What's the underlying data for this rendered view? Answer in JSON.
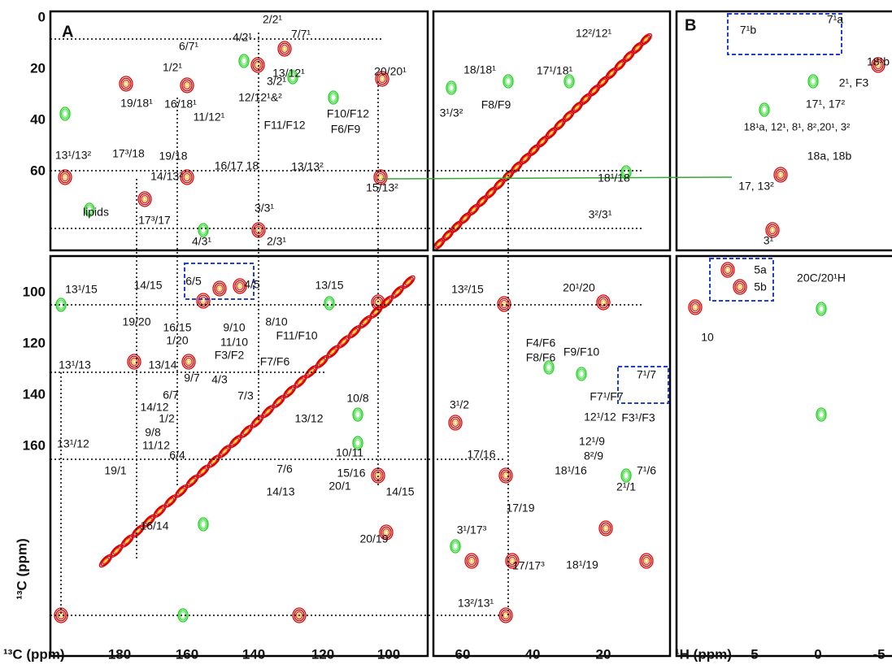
{
  "panels": {
    "a_label": "A",
    "b_label": "B"
  },
  "y_axis": {
    "title": "¹³C (ppm)",
    "ticks": [
      "0",
      "20",
      "40",
      "60",
      "100",
      "120",
      "140",
      "160"
    ]
  },
  "x_axis": {
    "title_c": "¹³C (ppm)",
    "ticks_a": [
      "180",
      "160",
      "140",
      "120",
      "100"
    ],
    "ticks_mid": [
      "60",
      "40",
      "20"
    ],
    "title_h": "¹H (ppm)",
    "ticks_b": [
      "5",
      "0",
      "-5"
    ]
  },
  "annotations": [
    "6/7¹",
    "4/2¹",
    "2/2¹",
    "7/7¹",
    "1/2¹",
    "13/12¹",
    "20/20¹",
    "19/18¹",
    "16/18¹",
    "3/2¹",
    "12/12¹&²",
    "11/12¹",
    "F11/F12",
    "F10/F12",
    "F6/F9",
    "13¹/13²",
    "17³/18",
    "19/18",
    "16/17 18",
    "13/13²",
    "14/13²",
    "15/13²",
    "lipids",
    "17³/17",
    "3/3¹",
    "4/3¹",
    "2/3¹",
    "12²/12¹",
    "18/18¹",
    "17¹/18¹",
    "F8/F9",
    "3¹/3²",
    "18¹/18",
    "3²/3¹",
    "7¹b",
    "7¹a",
    "18¹b",
    "2¹, F3",
    "17¹, 17²",
    "18¹a, 12¹, 8¹, 8²,20¹, 3²",
    "18a, 18b",
    "17, 13²",
    "3¹",
    "13¹/15",
    "14/15",
    "6/5",
    "4/5",
    "13/15",
    "19/20",
    "16/15",
    "1/20",
    "9/10",
    "8/10",
    "11/10",
    "F11/F10",
    "F3/F2",
    "13¹/13",
    "13/14",
    "F7/F6",
    "9/7",
    "4/3",
    "6/7",
    "7/3",
    "10/8",
    "14/12",
    "1/2",
    "13/12",
    "9/8",
    "11/12",
    "13¹/12",
    "6/4",
    "10/11",
    "7/6",
    "19/1",
    "15/16",
    "20/1",
    "14/13",
    "14/15",
    "16/14",
    "20/19",
    "13²/15",
    "20¹/20",
    "F4/F6",
    "F8/F6",
    "F9/F10",
    "7¹/7",
    "F7¹/F7",
    "3¹/2",
    "12¹/12",
    "F3¹/F3",
    "12¹/9",
    "8²/9",
    "17/16",
    "7¹/6",
    "18¹/16",
    "2¹/1",
    "17/19",
    "3¹/17³",
    "17/17³",
    "18¹/19",
    "13²/13¹",
    "5a",
    "5b",
    "20C/20¹H",
    "10"
  ]
}
